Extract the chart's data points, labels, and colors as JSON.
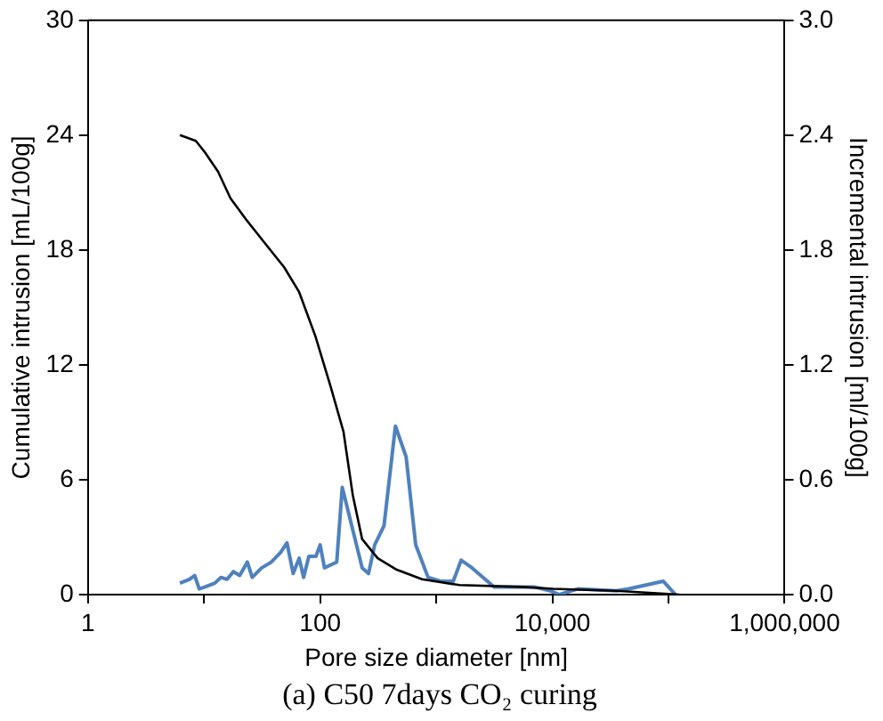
{
  "chart_data": {
    "type": "line",
    "title": "(a) C50 7days CO₂ curing",
    "xlabel": "Pore size diameter [nm]",
    "ylabel": "Cumulative intrusion [mL/100g]",
    "y2label": "Incremental intrusion [ml/100g]",
    "log": "x",
    "grid": false,
    "legend": false,
    "marker": "none",
    "line_style": "solid",
    "xlim": [
      1,
      1000000
    ],
    "xticks": [
      1,
      {
        "value": 10,
        "label": null
      },
      100,
      {
        "value": 1000,
        "label": null
      },
      {
        "value": 10000,
        "label": "10,000"
      },
      {
        "value": 100000,
        "label": null
      },
      {
        "value": 1000000,
        "label": "1,000,000"
      }
    ],
    "ylim": [
      0,
      30
    ],
    "yticks": [
      0,
      6,
      12,
      18,
      24,
      30
    ],
    "y2lim": [
      0,
      3.0
    ],
    "y2ticks": [
      {
        "value": 0,
        "label": "0.0"
      },
      0.6,
      1.2,
      1.8,
      2.4,
      {
        "value": 3,
        "label": "3.0"
      }
    ],
    "series": [
      {
        "color": "#000000",
        "x": [
          6.2,
          8.5,
          10.2,
          13.2,
          16.9,
          23,
          33,
          49,
          66,
          91,
          124,
          159,
          191,
          230,
          313,
          457,
          755,
          1580,
          5500,
          10200,
          35500,
          124000
        ],
        "values": [
          24.0,
          23.7,
          23.1,
          22.1,
          20.7,
          19.6,
          18.4,
          17.1,
          15.8,
          13.5,
          10.8,
          8.5,
          5.2,
          2.9,
          1.9,
          1.3,
          0.8,
          0.5,
          0.4,
          0.3,
          0.2,
          0
        ]
      },
      {
        "color": "#4f81bd",
        "axis": "y2",
        "x": [
          6.2,
          7.5,
          8.3,
          9.1,
          10.2,
          12.4,
          14,
          15.8,
          17.9,
          20.3,
          23.6,
          26,
          31.4,
          38,
          45.7,
          51.8,
          58.6,
          66,
          72,
          80,
          92,
          100,
          109,
          139,
          155,
          230,
          261,
          295,
          355,
          445,
          550,
          665,
          850,
          1090,
          1400,
          1640,
          2030,
          3150,
          7000,
          9560,
          11500,
          16500,
          35500,
          45500,
          90000,
          115000
        ],
        "values": [
          0.06,
          0.08,
          0.1,
          0.03,
          0.04,
          0.06,
          0.09,
          0.08,
          0.12,
          0.1,
          0.17,
          0.09,
          0.14,
          0.17,
          0.22,
          0.27,
          0.11,
          0.19,
          0.09,
          0.2,
          0.2,
          0.26,
          0.14,
          0.17,
          0.56,
          0.14,
          0.11,
          0.26,
          0.36,
          0.88,
          0.72,
          0.26,
          0.09,
          0.07,
          0.07,
          0.18,
          0.14,
          0.04,
          0.04,
          0.02,
          0,
          0.03,
          0.02,
          0.03,
          0.07,
          0
        ]
      }
    ]
  }
}
